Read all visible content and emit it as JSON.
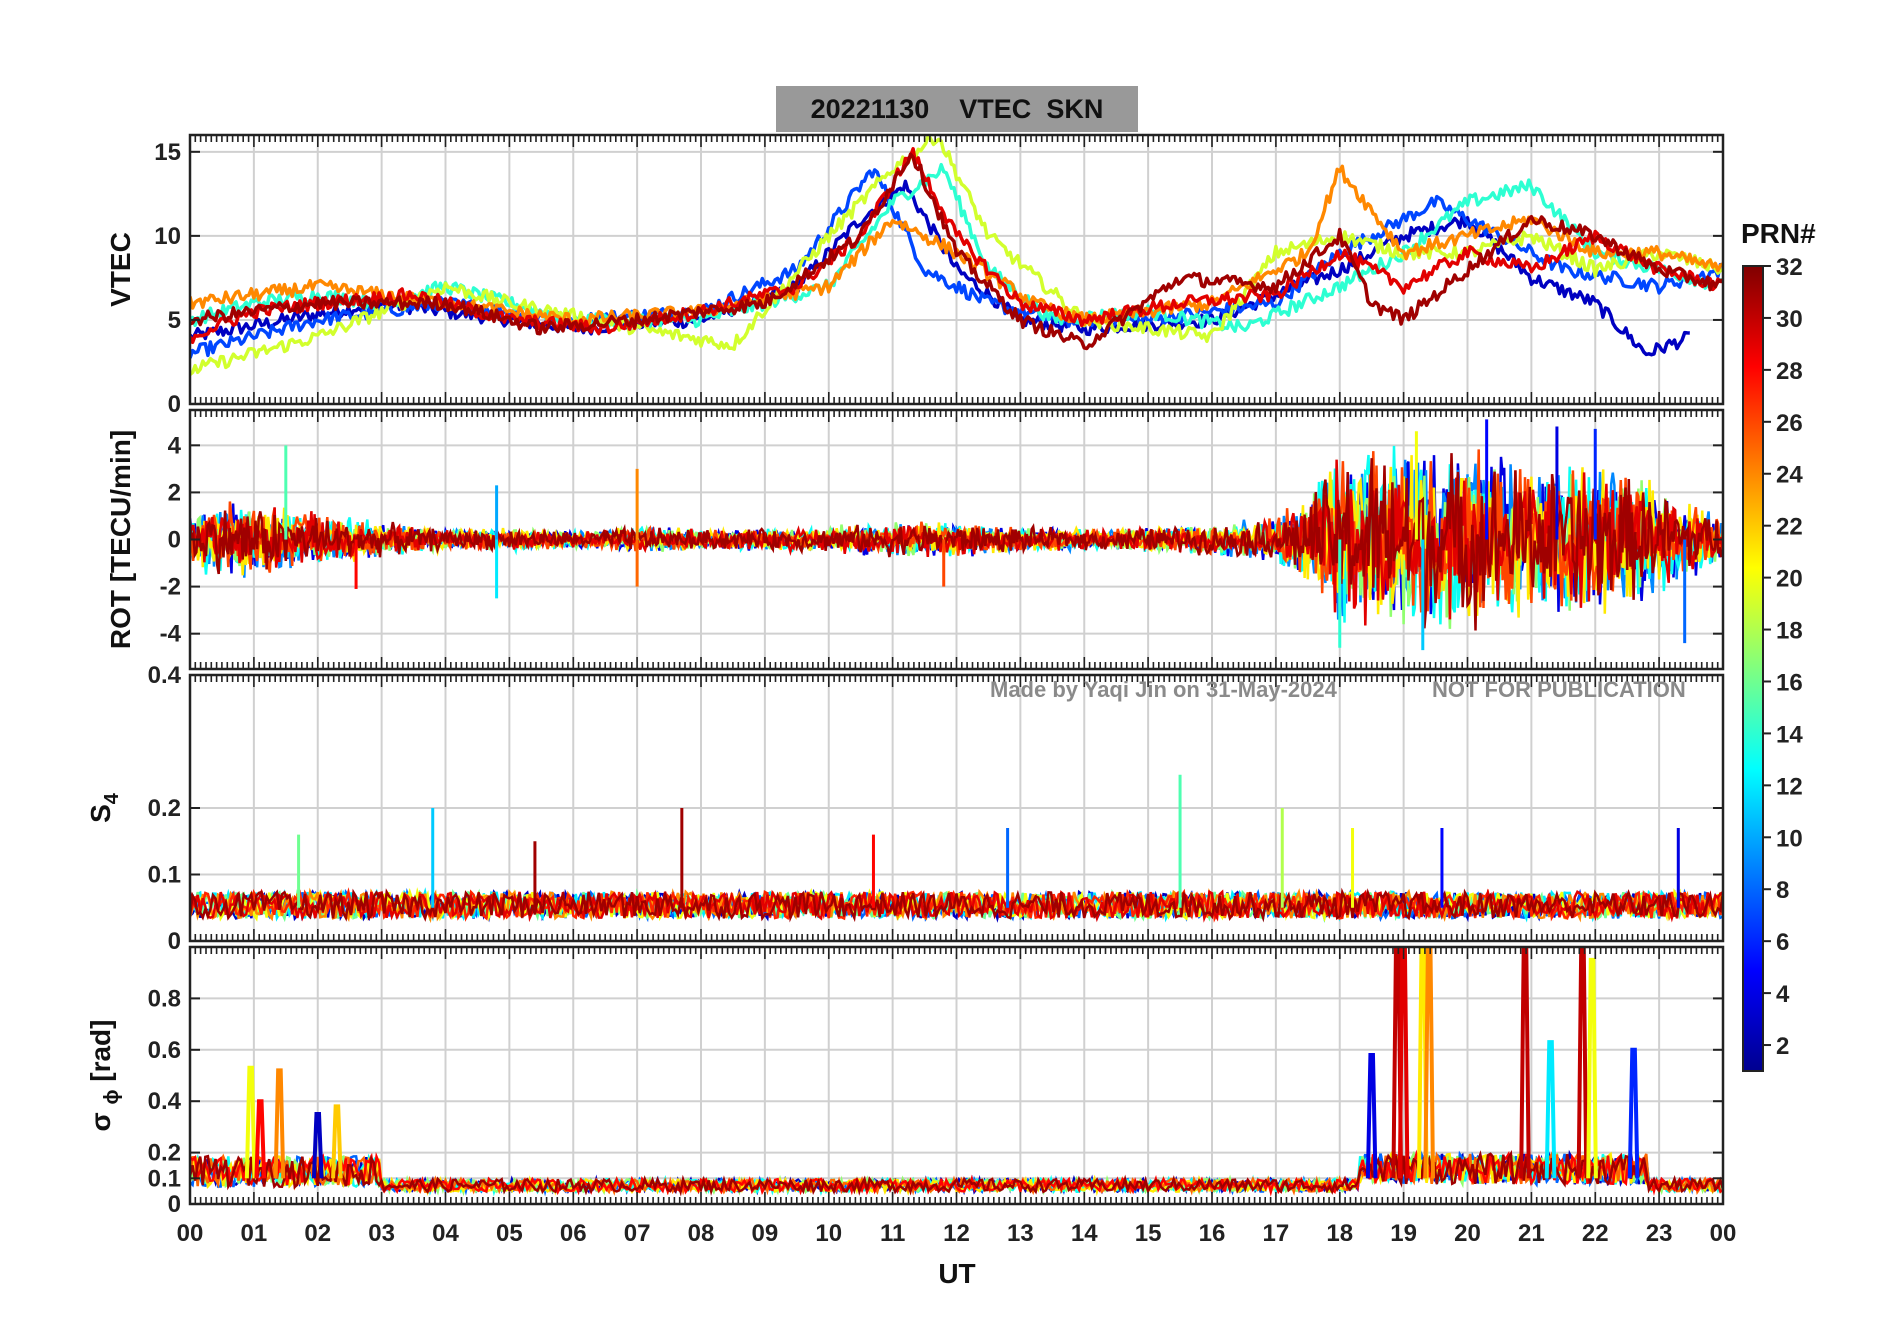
{
  "figure": {
    "title_date": "20221130",
    "title_product": "VTEC",
    "title_station": "SKN",
    "x_label": "UT",
    "x_ticks": [
      "00",
      "01",
      "02",
      "03",
      "04",
      "05",
      "06",
      "07",
      "08",
      "09",
      "10",
      "11",
      "12",
      "13",
      "14",
      "15",
      "16",
      "17",
      "18",
      "19",
      "20",
      "21",
      "22",
      "23",
      "00"
    ],
    "watermark": "Made by Yaqi Jin on 31-May-2024",
    "watermark_notice": "NOT FOR PUBLICATION",
    "colorbar_label": "PRN#",
    "colorbar_ticks": [
      "2",
      "4",
      "6",
      "8",
      "10",
      "12",
      "14",
      "16",
      "18",
      "20",
      "22",
      "24",
      "26",
      "28",
      "30",
      "32"
    ],
    "colormap": "jet"
  },
  "chart_data": [
    {
      "type": "line",
      "panel": "vtec",
      "ylabel": "VTEC",
      "yticks": [
        0,
        5,
        10,
        15
      ],
      "ylim": [
        0,
        16
      ],
      "xlim": [
        0,
        24
      ],
      "grid": true,
      "series": [
        {
          "prn": 3,
          "x": [
            0,
            3,
            6,
            8,
            9.5,
            10.5,
            11.2,
            12,
            13,
            14,
            16,
            18,
            19,
            20,
            21,
            22,
            22.8,
            23.5
          ],
          "y": [
            4,
            6,
            4.5,
            5,
            7,
            11,
            13,
            8,
            5,
            4.5,
            5,
            8,
            10,
            11,
            7.5,
            6,
            3,
            4
          ]
        },
        {
          "prn": 7,
          "x": [
            0,
            2,
            4,
            6,
            8,
            9.5,
            10.7,
            11.5,
            12.5,
            13.5,
            15,
            17,
            18,
            19.5,
            20.5,
            21.5,
            23,
            24
          ],
          "y": [
            3,
            5,
            6,
            5,
            5.5,
            8,
            14,
            8,
            6,
            5,
            5,
            6,
            9,
            12,
            10,
            8,
            7,
            8
          ]
        },
        {
          "prn": 14,
          "x": [
            0,
            1,
            2,
            3,
            4,
            6,
            8,
            10,
            11,
            11.8,
            12.5,
            13.5,
            15,
            16.5,
            18,
            19,
            20,
            21,
            22,
            23,
            24
          ],
          "y": [
            5,
            6,
            6.5,
            6,
            7,
            5,
            5,
            7,
            12,
            14,
            8,
            5,
            5.5,
            4.5,
            7,
            9,
            12,
            13,
            9,
            8,
            7
          ]
        },
        {
          "prn": 19,
          "x": [
            0,
            2,
            4,
            5,
            7,
            8.5,
            10,
            11,
            11.7,
            12.5,
            14,
            16,
            17,
            18,
            19,
            20,
            21,
            22,
            23,
            24
          ],
          "y": [
            2,
            4,
            7,
            6,
            4.5,
            3.5,
            10,
            14,
            16,
            10,
            5,
            4,
            9,
            10,
            9,
            9,
            10,
            8,
            9,
            8
          ]
        },
        {
          "prn": 24,
          "x": [
            0,
            2,
            4,
            6,
            8,
            10,
            11,
            12,
            13.2,
            14,
            16,
            17.5,
            18,
            19,
            20,
            21,
            22,
            23,
            24
          ],
          "y": [
            6,
            7,
            6,
            5,
            5.5,
            7,
            11,
            9,
            6,
            5,
            6,
            9,
            14,
            9,
            10,
            11,
            9,
            9,
            8
          ]
        },
        {
          "prn": 29,
          "x": [
            0,
            1,
            2,
            3.5,
            5,
            6.5,
            8,
            9.5,
            10.5,
            11.3,
            12,
            13,
            14,
            15.5,
            17,
            18,
            19,
            20,
            21,
            22,
            23,
            24
          ],
          "y": [
            4,
            5.5,
            6,
            6.5,
            5,
            4.5,
            5.5,
            7,
            10,
            15,
            10,
            6,
            5,
            6,
            6.5,
            9,
            7,
            9,
            8,
            10,
            8,
            7
          ]
        },
        {
          "prn": 31,
          "x": [
            0,
            2,
            4,
            5.5,
            7,
            9,
            10.5,
            11.3,
            12,
            13,
            14,
            15.5,
            17,
            18,
            18.5,
            19,
            20,
            21,
            22,
            23,
            24
          ],
          "y": [
            5,
            6,
            6,
            4.5,
            5,
            6,
            10,
            15,
            9,
            5,
            3.5,
            7.5,
            7,
            10,
            6,
            5,
            8,
            11,
            10,
            8,
            7
          ]
        }
      ]
    },
    {
      "type": "line",
      "panel": "rot",
      "ylabel": "ROT [TECU/min]",
      "yticks": [
        -4,
        -2,
        0,
        2,
        4
      ],
      "ylim": [
        -5.5,
        5.5
      ],
      "xlim": [
        0,
        24
      ],
      "grid": true,
      "envelope": {
        "x": [
          0,
          1,
          2,
          3,
          4,
          5,
          6,
          7,
          8,
          9,
          10,
          11,
          12,
          13,
          14,
          15,
          16,
          17,
          17.5,
          18,
          19,
          20,
          21,
          22,
          23,
          24
        ],
        "amplitude": [
          1.5,
          1.8,
          1.2,
          0.8,
          0.5,
          0.5,
          0.4,
          0.6,
          0.5,
          0.5,
          0.6,
          0.8,
          0.8,
          0.6,
          0.5,
          0.6,
          0.7,
          1.0,
          2.0,
          4.0,
          4.5,
          4.0,
          3.5,
          3.5,
          2.5,
          1.0
        ]
      },
      "spikes": [
        {
          "x": 1.5,
          "y": 4.0
        },
        {
          "x": 2.6,
          "y": -2.1
        },
        {
          "x": 4.8,
          "y": 2.3
        },
        {
          "x": 4.8,
          "y": -2.5
        },
        {
          "x": 7.0,
          "y": 3.0
        },
        {
          "x": 7.0,
          "y": -2.0
        },
        {
          "x": 11.8,
          "y": -2.0
        },
        {
          "x": 19.2,
          "y": 4.6
        },
        {
          "x": 20.3,
          "y": 5.1
        },
        {
          "x": 21.4,
          "y": 4.8
        },
        {
          "x": 22.0,
          "y": 4.7
        },
        {
          "x": 23.4,
          "y": -4.4
        },
        {
          "x": 18.0,
          "y": -4.6
        },
        {
          "x": 19.3,
          "y": -4.7
        }
      ]
    },
    {
      "type": "line",
      "panel": "s4",
      "ylabel": "S4",
      "ylabel_main": "S",
      "ylabel_sub": "4",
      "yticks": [
        0,
        0.1,
        0.2,
        0.4
      ],
      "ytick_labels": [
        "0",
        "0.1",
        "0.2",
        "0.4"
      ],
      "ylim": [
        0,
        0.4
      ],
      "xlim": [
        0,
        24
      ],
      "grid": true,
      "baseline": 0.05,
      "spikes": [
        {
          "x": 1.7,
          "y": 0.16,
          "prn": 16
        },
        {
          "x": 3.8,
          "y": 0.2,
          "prn": 11
        },
        {
          "x": 5.4,
          "y": 0.15,
          "prn": 31
        },
        {
          "x": 7.7,
          "y": 0.2,
          "prn": 31
        },
        {
          "x": 10.7,
          "y": 0.16,
          "prn": 28
        },
        {
          "x": 12.8,
          "y": 0.17,
          "prn": 8
        },
        {
          "x": 15.5,
          "y": 0.25,
          "prn": 15
        },
        {
          "x": 17.1,
          "y": 0.2,
          "prn": 18
        },
        {
          "x": 18.2,
          "y": 0.17,
          "prn": 20
        },
        {
          "x": 19.6,
          "y": 0.17,
          "prn": 5
        },
        {
          "x": 23.3,
          "y": 0.17,
          "prn": 4
        }
      ]
    },
    {
      "type": "line",
      "panel": "sigma_phi",
      "ylabel": "σ ϕ [rad]",
      "ylabel_main": "σ",
      "ylabel_sub": "ϕ",
      "ylabel_unit": "[rad]",
      "yticks": [
        0,
        0.1,
        0.2,
        0.4,
        0.6,
        0.8
      ],
      "ylim": [
        0,
        1.0
      ],
      "xlim": [
        0,
        24
      ],
      "grid": true,
      "baseline": 0.07,
      "bursts": [
        {
          "x": 0.95,
          "y": 0.53,
          "prn": 20
        },
        {
          "x": 1.1,
          "y": 0.4,
          "prn": 28
        },
        {
          "x": 1.4,
          "y": 0.52,
          "prn": 24
        },
        {
          "x": 2.3,
          "y": 0.38,
          "prn": 22
        },
        {
          "x": 2.0,
          "y": 0.35,
          "prn": 3
        },
        {
          "x": 18.5,
          "y": 0.58,
          "prn": 4
        },
        {
          "x": 18.9,
          "y": 1.0,
          "prn": 30
        },
        {
          "x": 19.0,
          "y": 1.0,
          "prn": 29
        },
        {
          "x": 19.3,
          "y": 1.0,
          "prn": 21
        },
        {
          "x": 19.4,
          "y": 1.0,
          "prn": 24
        },
        {
          "x": 20.9,
          "y": 1.0,
          "prn": 30
        },
        {
          "x": 21.3,
          "y": 0.63,
          "prn": 12
        },
        {
          "x": 21.8,
          "y": 1.0,
          "prn": 30
        },
        {
          "x": 21.95,
          "y": 0.95,
          "prn": 20
        },
        {
          "x": 22.6,
          "y": 0.6,
          "prn": 6
        }
      ]
    }
  ]
}
